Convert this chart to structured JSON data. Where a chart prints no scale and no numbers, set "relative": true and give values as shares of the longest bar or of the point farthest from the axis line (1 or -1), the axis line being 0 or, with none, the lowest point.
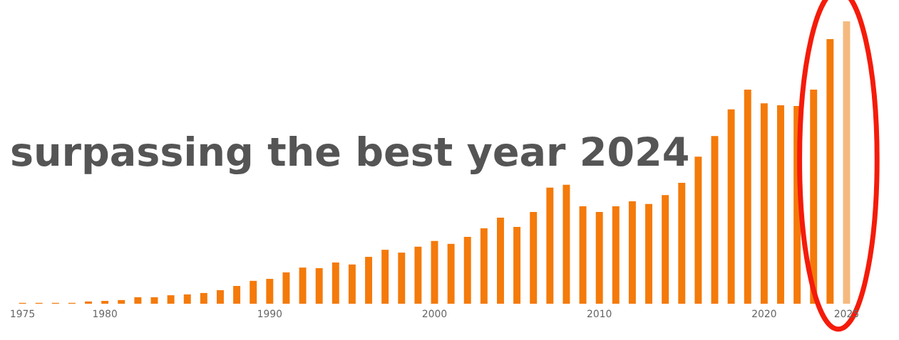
{
  "chart_data": {
    "type": "bar",
    "relative": true,
    "categories": [
      "1975",
      null,
      null,
      null,
      null,
      "1980",
      null,
      null,
      null,
      null,
      null,
      null,
      null,
      null,
      null,
      "1990",
      null,
      null,
      null,
      null,
      null,
      null,
      null,
      null,
      null,
      "2000",
      null,
      null,
      null,
      null,
      null,
      null,
      null,
      null,
      null,
      "2010",
      null,
      null,
      null,
      null,
      null,
      null,
      null,
      null,
      null,
      "2020",
      null,
      null,
      null,
      null,
      "2025"
    ],
    "values": [
      0.003,
      0.003,
      0.003,
      0.003,
      0.008,
      0.01,
      0.013,
      0.023,
      0.023,
      0.03,
      0.033,
      0.038,
      0.048,
      0.063,
      0.081,
      0.088,
      0.111,
      0.128,
      0.126,
      0.146,
      0.139,
      0.166,
      0.191,
      0.181,
      0.202,
      0.222,
      0.212,
      0.237,
      0.267,
      0.305,
      0.272,
      0.325,
      0.411,
      0.421,
      0.345,
      0.325,
      0.345,
      0.363,
      0.353,
      0.385,
      0.428,
      0.521,
      0.594,
      0.688,
      0.758,
      0.71,
      0.703,
      0.7,
      0.758,
      0.937,
      1
    ],
    "colors": [
      "#f47a0a",
      "#f47a0a",
      "#f47a0a",
      "#f47a0a",
      "#f47a0a",
      "#f47a0a",
      "#f47a0a",
      "#f47a0a",
      "#f47a0a",
      "#f47a0a",
      "#f47a0a",
      "#f47a0a",
      "#f47a0a",
      "#f47a0a",
      "#f47a0a",
      "#f47a0a",
      "#f47a0a",
      "#f47a0a",
      "#f47a0a",
      "#f47a0a",
      "#f47a0a",
      "#f47a0a",
      "#f47a0a",
      "#f47a0a",
      "#f47a0a",
      "#f47a0a",
      "#f47a0a",
      "#f47a0a",
      "#f47a0a",
      "#f47a0a",
      "#f47a0a",
      "#f47a0a",
      "#f47a0a",
      "#f47a0a",
      "#f47a0a",
      "#f47a0a",
      "#f47a0a",
      "#f47a0a",
      "#f47a0a",
      "#f47a0a",
      "#f47a0a",
      "#f47a0a",
      "#f47a0a",
      "#f47a0a",
      "#f47a0a",
      "#f47a0a",
      "#f47a0a",
      "#f47a0a",
      "#f47a0a",
      "#f47a0a",
      "#f5b97e"
    ],
    "annotations": [
      "surpassing the best year 2024"
    ],
    "grid": false,
    "legend": false
  }
}
